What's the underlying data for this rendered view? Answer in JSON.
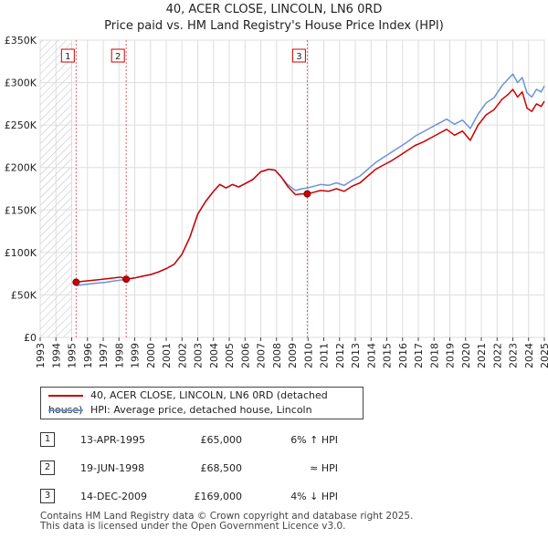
{
  "header": {
    "title": "40, ACER CLOSE, LINCOLN, LN6 0RD",
    "subtitle": "Price paid vs. HM Land Registry's House Price Index (HPI)"
  },
  "colors": {
    "property_line": "#cc0000",
    "hpi_line": "#6b93d6",
    "marker_border": "#cc0000",
    "vline": "#e06060",
    "grid": "#dddddd"
  },
  "chart_data": {
    "type": "line",
    "title": "40, ACER CLOSE, LINCOLN, LN6 0RD",
    "subtitle": "Price paid vs. HM Land Registry's House Price Index (HPI)",
    "xlabel": "",
    "ylabel": "",
    "xlim": [
      1993,
      2025
    ],
    "ylim": [
      0,
      350000
    ],
    "y_ticks": [
      {
        "value": 0,
        "label": "£0"
      },
      {
        "value": 50000,
        "label": "£50K"
      },
      {
        "value": 100000,
        "label": "£100K"
      },
      {
        "value": 150000,
        "label": "£150K"
      },
      {
        "value": 200000,
        "label": "£200K"
      },
      {
        "value": 250000,
        "label": "£250K"
      },
      {
        "value": 300000,
        "label": "£300K"
      },
      {
        "value": 350000,
        "label": "£350K"
      }
    ],
    "x_ticks": [
      "1993",
      "1994",
      "1995",
      "1996",
      "1997",
      "1998",
      "1999",
      "2000",
      "2001",
      "2002",
      "2003",
      "2004",
      "2005",
      "2006",
      "2007",
      "2008",
      "2009",
      "2010",
      "2011",
      "2012",
      "2013",
      "2014",
      "2015",
      "2016",
      "2017",
      "2018",
      "2019",
      "2020",
      "2021",
      "2022",
      "2023",
      "2024",
      "2025"
    ],
    "grid": true,
    "hatched_before": 1995.0,
    "series": [
      {
        "name": "40, ACER CLOSE, LINCOLN, LN6 0RD (detached house)",
        "x": [
          1995.28,
          1995.7,
          1996.2,
          1996.7,
          1997.2,
          1997.7,
          1998.1,
          1998.46,
          1999.0,
          1999.5,
          2000.0,
          2000.5,
          2001.0,
          2001.5,
          2002.0,
          2002.5,
          2003.0,
          2003.5,
          2004.0,
          2004.4,
          2004.8,
          2005.2,
          2005.6,
          2006.0,
          2006.5,
          2007.0,
          2007.5,
          2007.9,
          2008.3,
          2008.7,
          2009.2,
          2009.6,
          2009.95,
          2010.4,
          2010.8,
          2011.3,
          2011.8,
          2012.3,
          2012.8,
          2013.3,
          2013.8,
          2014.3,
          2014.8,
          2015.3,
          2015.8,
          2016.3,
          2016.8,
          2017.3,
          2017.8,
          2018.3,
          2018.8,
          2019.3,
          2019.8,
          2020.3,
          2020.8,
          2021.3,
          2021.8,
          2022.3,
          2022.7,
          2023.0,
          2023.3,
          2023.6,
          2023.9,
          2024.2,
          2024.5,
          2024.8,
          2025.0
        ],
        "values": [
          65000,
          66000,
          67000,
          68000,
          69000,
          70000,
          71000,
          68500,
          70000,
          72000,
          74000,
          77000,
          81000,
          86000,
          98000,
          118000,
          145000,
          160000,
          172000,
          180000,
          176000,
          180000,
          177000,
          181000,
          186000,
          195000,
          198000,
          197000,
          189000,
          178000,
          168000,
          169000,
          169000,
          171000,
          173000,
          172000,
          175000,
          172000,
          178000,
          182000,
          190000,
          198000,
          203000,
          208000,
          214000,
          220000,
          226000,
          230000,
          235000,
          240000,
          245000,
          238000,
          243000,
          232000,
          250000,
          262000,
          268000,
          280000,
          286000,
          292000,
          283000,
          289000,
          270000,
          266000,
          275000,
          272000,
          278000
        ]
      },
      {
        "name": "HPI: Average price, detached house, Lincoln",
        "x": [
          1995.28,
          1995.7,
          1996.2,
          1996.7,
          1997.2,
          1997.7,
          1998.1,
          1998.46,
          1999.0,
          1999.5,
          2000.0,
          2000.5,
          2001.0,
          2001.5,
          2002.0,
          2002.5,
          2003.0,
          2003.5,
          2004.0,
          2004.4,
          2004.8,
          2005.2,
          2005.6,
          2006.0,
          2006.5,
          2007.0,
          2007.5,
          2007.9,
          2008.3,
          2008.7,
          2009.2,
          2009.6,
          2009.95,
          2010.4,
          2010.8,
          2011.3,
          2011.8,
          2012.3,
          2012.8,
          2013.3,
          2013.8,
          2014.3,
          2014.8,
          2015.3,
          2015.8,
          2016.3,
          2016.8,
          2017.3,
          2017.8,
          2018.3,
          2018.8,
          2019.3,
          2019.8,
          2020.3,
          2020.8,
          2021.3,
          2021.8,
          2022.3,
          2022.7,
          2023.0,
          2023.3,
          2023.6,
          2023.9,
          2024.2,
          2024.5,
          2024.8,
          2025.0
        ],
        "values": [
          61000,
          62000,
          63000,
          64000,
          65000,
          66500,
          67500,
          68500,
          70000,
          72000,
          74000,
          77000,
          81000,
          86000,
          98000,
          118000,
          145000,
          160000,
          172000,
          180000,
          176000,
          180000,
          177000,
          181000,
          186000,
          195000,
          198000,
          197000,
          189000,
          180000,
          173000,
          175000,
          176000,
          178000,
          180000,
          179000,
          182000,
          179000,
          185000,
          190000,
          198000,
          206000,
          212000,
          218000,
          224000,
          230000,
          237000,
          242000,
          247000,
          252000,
          257000,
          251000,
          256000,
          246000,
          263000,
          276000,
          282000,
          296000,
          304000,
          310000,
          300000,
          306000,
          288000,
          283000,
          292000,
          289000,
          296000
        ]
      }
    ],
    "transactions": [
      {
        "num": "1",
        "x": 1995.28,
        "price": 65000
      },
      {
        "num": "2",
        "x": 1998.46,
        "price": 68500
      },
      {
        "num": "3",
        "x": 2009.95,
        "price": 169000
      }
    ]
  },
  "legend": {
    "property_label": "40, ACER CLOSE, LINCOLN, LN6 0RD (detached house)",
    "hpi_label": "HPI: Average price, detached house, Lincoln"
  },
  "table": {
    "rows": [
      {
        "num": "1",
        "date": "13-APR-1995",
        "price": "£65,000",
        "hpi": "6% ↑ HPI"
      },
      {
        "num": "2",
        "date": "19-JUN-1998",
        "price": "£68,500",
        "hpi": "≈ HPI"
      },
      {
        "num": "3",
        "date": "14-DEC-2009",
        "price": "£169,000",
        "hpi": "4% ↓ HPI"
      }
    ]
  },
  "footer": {
    "line1": "Contains HM Land Registry data © Crown copyright and database right 2025.",
    "line2": "This data is licensed under the Open Government Licence v3.0."
  }
}
